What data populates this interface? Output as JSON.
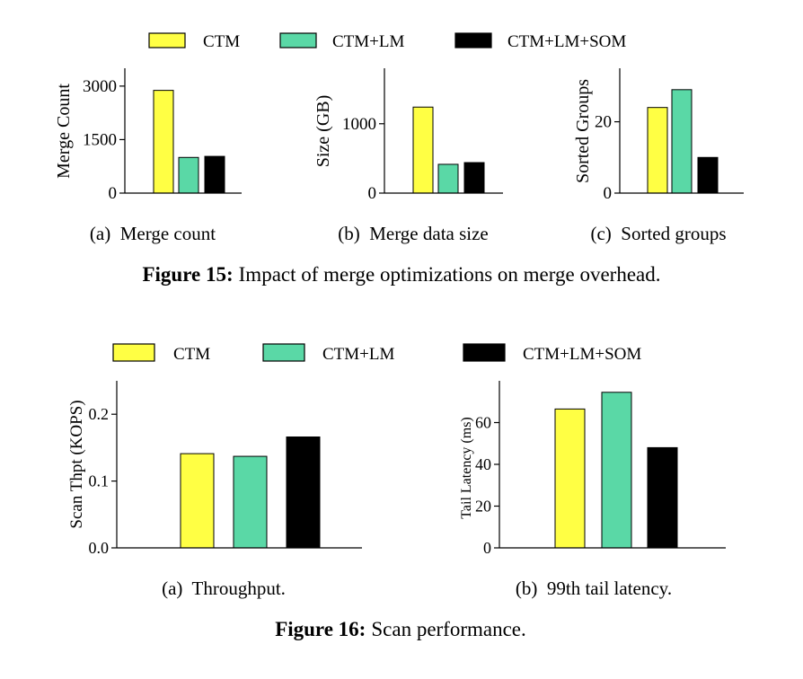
{
  "colors": {
    "CTM": "#ffff44",
    "CTM+LM": "#5ad8a6",
    "CTM+LM+SOM": "#000000"
  },
  "figure15": {
    "legend": [
      "CTM",
      "CTM+LM",
      "CTM+LM+SOM"
    ],
    "caption_bold": "Figure 15:",
    "caption_text": "Impact of merge optimizations on merge overhead."
  },
  "figure16": {
    "legend": [
      "CTM",
      "CTM+LM",
      "CTM+LM+SOM"
    ],
    "caption_bold": "Figure 16:",
    "caption_text": "Scan performance."
  },
  "chart_data": [
    {
      "id": "fig15a",
      "type": "bar",
      "caption": "(a)  Merge count",
      "ylabel": "Merge Count",
      "ylim": [
        0,
        3500
      ],
      "yticks": [
        0,
        1500,
        3000
      ],
      "ytick_labels": [
        "0",
        "1500",
        "3000"
      ],
      "series": [
        {
          "name": "CTM",
          "values": [
            2880
          ]
        },
        {
          "name": "CTM+LM",
          "values": [
            1000
          ]
        },
        {
          "name": "CTM+LM+SOM",
          "values": [
            1030
          ]
        }
      ]
    },
    {
      "id": "fig15b",
      "type": "bar",
      "caption": "(b)  Merge data size",
      "ylabel": "Size (GB)",
      "ylim": [
        0,
        1800
      ],
      "yticks": [
        0,
        1000
      ],
      "ytick_labels": [
        "0",
        "1000"
      ],
      "series": [
        {
          "name": "CTM",
          "values": [
            1240
          ]
        },
        {
          "name": "CTM+LM",
          "values": [
            415
          ]
        },
        {
          "name": "CTM+LM+SOM",
          "values": [
            440
          ]
        }
      ]
    },
    {
      "id": "fig15c",
      "type": "bar",
      "caption": "(c)  Sorted groups",
      "ylabel": "Sorted Groups",
      "ylim": [
        0,
        35
      ],
      "yticks": [
        0,
        20
      ],
      "ytick_labels": [
        "0",
        "20"
      ],
      "series": [
        {
          "name": "CTM",
          "values": [
            24
          ]
        },
        {
          "name": "CTM+LM",
          "values": [
            29
          ]
        },
        {
          "name": "CTM+LM+SOM",
          "values": [
            10
          ]
        }
      ]
    },
    {
      "id": "fig16a",
      "type": "bar",
      "caption": "(a)  Throughput.",
      "ylabel": "Scan Thpt (KOPS)",
      "ylim": [
        0,
        0.25
      ],
      "yticks": [
        0,
        0.1,
        0.2
      ],
      "ytick_labels": [
        "0.0",
        "0.1",
        "0.2"
      ],
      "series": [
        {
          "name": "CTM",
          "values": [
            0.141
          ]
        },
        {
          "name": "CTM+LM",
          "values": [
            0.137
          ]
        },
        {
          "name": "CTM+LM+SOM",
          "values": [
            0.166
          ]
        }
      ]
    },
    {
      "id": "fig16b",
      "type": "bar",
      "caption": "(b)  99th tail latency.",
      "ylabel": "Tail Latency (ms)",
      "ylim": [
        0,
        80
      ],
      "yticks": [
        0,
        20,
        40,
        60
      ],
      "ytick_labels": [
        "0",
        "20",
        "40",
        "60"
      ],
      "series": [
        {
          "name": "CTM",
          "values": [
            66.5
          ]
        },
        {
          "name": "CTM+LM",
          "values": [
            74.5
          ]
        },
        {
          "name": "CTM+LM+SOM",
          "values": [
            48
          ]
        }
      ]
    }
  ]
}
